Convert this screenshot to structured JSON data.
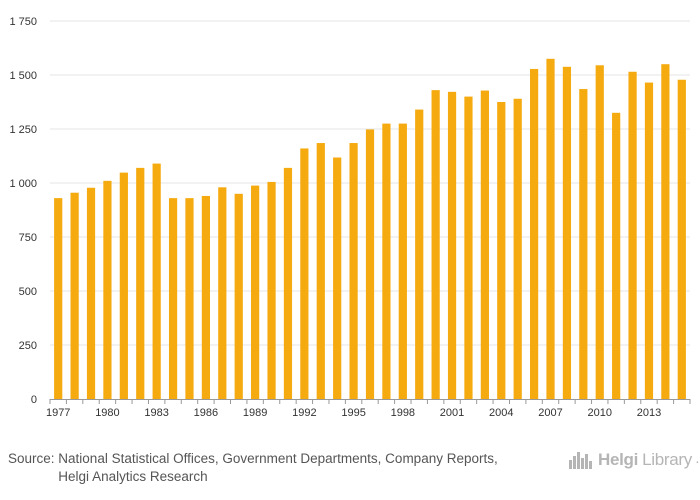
{
  "chart_data": {
    "type": "bar",
    "title": "",
    "xlabel": "",
    "ylabel": "",
    "ylim": [
      0,
      1750
    ],
    "y_ticks": [
      0,
      250,
      500,
      750,
      1000,
      1250,
      1500,
      1750
    ],
    "y_tick_labels": [
      "0",
      "250",
      "500",
      "750",
      "1 000",
      "1 250",
      "1 500",
      "1 750"
    ],
    "categories": [
      1977,
      1978,
      1979,
      1980,
      1981,
      1982,
      1983,
      1984,
      1985,
      1986,
      1987,
      1988,
      1989,
      1990,
      1991,
      1992,
      1993,
      1994,
      1995,
      1996,
      1997,
      1998,
      1999,
      2000,
      2001,
      2002,
      2003,
      2004,
      2005,
      2006,
      2007,
      2008,
      2009,
      2010,
      2011,
      2012,
      2013,
      2014,
      2015
    ],
    "values": [
      930,
      955,
      978,
      1010,
      1048,
      1070,
      1090,
      930,
      930,
      940,
      980,
      950,
      988,
      1005,
      1070,
      1160,
      1185,
      1118,
      1185,
      1248,
      1275,
      1275,
      1340,
      1430,
      1422,
      1400,
      1428,
      1375,
      1390,
      1528,
      1575,
      1538,
      1435,
      1545,
      1325,
      1515,
      1465,
      1550,
      1478
    ],
    "x_tick_labels": [
      "1977",
      "1980",
      "1983",
      "1986",
      "1989",
      "1992",
      "1995",
      "1998",
      "2001",
      "2004",
      "2007",
      "2010",
      "2013"
    ],
    "bar_color": "#f5aa0f",
    "grid": true,
    "legend": "none"
  },
  "footer": {
    "source_label": "Source:",
    "source_line1": "National Statistical Offices, Government Departments, Company Reports,",
    "source_line2": "Helgi Analytics Research"
  },
  "logo": {
    "brand": "Helgi",
    "suffix": "Library",
    "dot": "."
  }
}
